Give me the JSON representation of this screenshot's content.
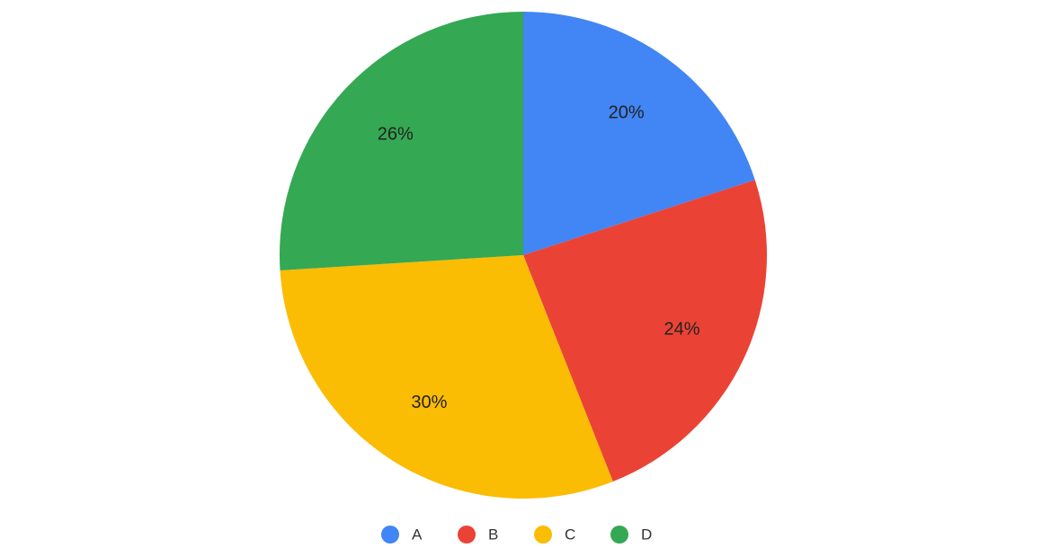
{
  "chart_data": {
    "type": "pie",
    "categories": [
      "A",
      "B",
      "C",
      "D"
    ],
    "values": [
      20,
      24,
      30,
      26
    ],
    "value_labels": [
      "20%",
      "24%",
      "30%",
      "26%"
    ],
    "colors": [
      "#4285f4",
      "#ea4335",
      "#fbbc04",
      "#34a853"
    ],
    "legend": "bottom"
  }
}
